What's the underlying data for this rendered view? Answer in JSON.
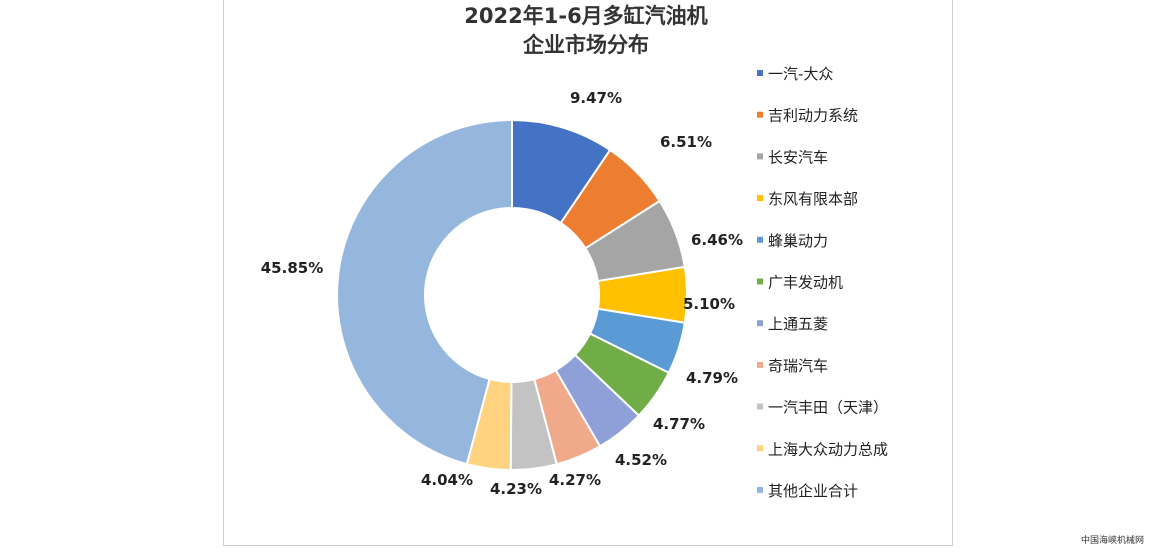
{
  "chart_data": {
    "type": "pie",
    "title": [
      "2022年1-6月多缸汽油机",
      "企业市场分布"
    ],
    "legend_position": "right",
    "slices": [
      {
        "name": "一汽-大众",
        "value": 9.47,
        "label": "9.47%",
        "color": "#4472C4"
      },
      {
        "name": "吉利动力系统",
        "value": 6.51,
        "label": "6.51%",
        "color": "#ED7D31"
      },
      {
        "name": "长安汽车",
        "value": 6.46,
        "label": "6.46%",
        "color": "#A5A5A5"
      },
      {
        "name": "东风有限本部",
        "value": 5.1,
        "label": "5.10%",
        "color": "#FFC000"
      },
      {
        "name": "蜂巢动力",
        "value": 4.79,
        "label": "4.79%",
        "color": "#5B9BD5"
      },
      {
        "name": "广丰发动机",
        "value": 4.77,
        "label": "4.77%",
        "color": "#70AD47"
      },
      {
        "name": "上通五菱",
        "value": 4.52,
        "label": "4.52%",
        "color": "#8FA0D8"
      },
      {
        "name": "奇瑞汽车",
        "value": 4.27,
        "label": "4.27%",
        "color": "#F0A98A"
      },
      {
        "name": "一汽丰田（天津）",
        "value": 4.23,
        "label": "4.23%",
        "color": "#C3C3C3"
      },
      {
        "name": "上海大众动力总成",
        "value": 4.04,
        "label": "4.04%",
        "color": "#FFD37F"
      },
      {
        "name": "其他企业合计",
        "value": 45.85,
        "label": "45.85%",
        "color": "#95B7DE"
      }
    ]
  },
  "watermark": "中国海峡机械网"
}
